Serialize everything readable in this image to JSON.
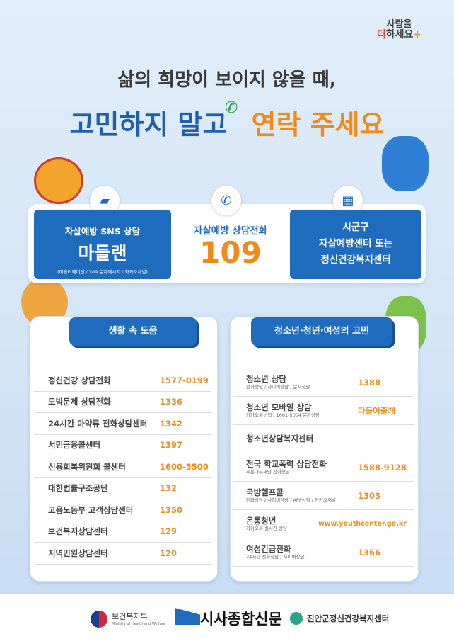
{
  "logo": {
    "line1": "사람을",
    "line2a": "더",
    "line2b": "하세요",
    "plus": "+"
  },
  "headline": {
    "line1": "삶의 희망이 보이지 않을 때,",
    "line2_blue": "고민하지 말고",
    "line2_orange": "연락 주세요"
  },
  "hotlines": [
    {
      "icon": "chat-bubbles-icon",
      "title": "자살예방 SNS 상담",
      "main": "마들랜",
      "sub": "(어플리케이션 / 109 문자메시지 / 카카오채널)"
    },
    {
      "icon": "phone-icon",
      "title": "자살예방 상담전화",
      "main": "109"
    },
    {
      "icon": "building-icon",
      "line1": "시군구",
      "line2": "자살예방센터 또는",
      "line3": "정신건강복지센터"
    }
  ],
  "left_panel": {
    "title": "생활 속 도움",
    "items": [
      {
        "label": "정신건강 상담전화",
        "number": "1577-0199"
      },
      {
        "label": "도박문제 상담전화",
        "number": "1336"
      },
      {
        "label": "24시간 마약류 전화상담센터",
        "number": "1342"
      },
      {
        "label": "서민금융콜센터",
        "number": "1397"
      },
      {
        "label": "신용회복위원회 콜센터",
        "number": "1600-5500"
      },
      {
        "label": "대한법률구조공단",
        "number": "132"
      },
      {
        "label": "고용노동부 고객상담센터",
        "number": "1350"
      },
      {
        "label": "보건복지상담센터",
        "number": "129"
      },
      {
        "label": "지역민원상담센터",
        "number": "120"
      }
    ]
  },
  "right_panel": {
    "title": "청소년·청년·여성의 고민",
    "items": [
      {
        "label": "청소년 상담",
        "sub": "전화상담 / 사이버상담 / 문자상담",
        "number": "1388"
      },
      {
        "label": "청소년 모바일 상담",
        "sub": "카카오톡 / 앱 / 1661-5004 문자상담",
        "number": "다들어줄개"
      },
      {
        "label": "청소년상담복지센터",
        "sub": "",
        "number": ""
      },
      {
        "label": "전국 학교폭력 상담전화",
        "sub": "푸른나무재단 전화상담",
        "number": "1588-9128"
      },
      {
        "label": "국방헬프콜",
        "sub": "전화상담 / 사이버상담 / APP상담 / 카카오채널",
        "number": "1303"
      },
      {
        "label": "온통청년",
        "sub": "카카오톡 실시간 상담",
        "number": "www.youthcenter.go.kr"
      },
      {
        "label": "여성긴급전화",
        "sub": "24시간 전화상담 / 사이버상담",
        "number": "1366"
      }
    ]
  },
  "footer": {
    "mohw": "보건복지부",
    "mohw_en": "Ministry of Health and Welfare",
    "news": "시사종합신문",
    "center": "진안군정신건강복지센터"
  },
  "colors": {
    "blue": "#1f6cbf",
    "orange": "#f08a1a",
    "text": "#3a3a3a"
  }
}
